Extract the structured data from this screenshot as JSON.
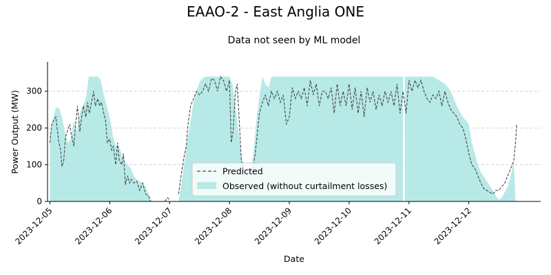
{
  "chart_data": {
    "type": "area",
    "title": "EAAO-2 - East Anglia ONE",
    "subtitle": "Data not seen by ML model",
    "xlabel": "Date",
    "ylabel": "Power Output (MW)",
    "x_ticks": [
      "2023-12-05",
      "2023-12-06",
      "2023-12-07",
      "2023-12-08",
      "2023-12-09",
      "2023-12-10",
      "2023-12-11",
      "2023-12-12"
    ],
    "y_ticks": [
      0,
      100,
      200,
      300
    ],
    "xlim": [
      -0.04,
      8.2
    ],
    "ylim": [
      0,
      380
    ],
    "grid": "horizontal dashed",
    "legend_position": "lower-center",
    "series": [
      {
        "name": "Observed (without curtailment losses)",
        "style": "filled area",
        "color": "#b7e9e7",
        "points": [
          [
            0.0,
            0
          ],
          [
            0.0,
            180
          ],
          [
            0.05,
            225
          ],
          [
            0.1,
            255
          ],
          [
            0.15,
            255
          ],
          [
            0.2,
            230
          ],
          [
            0.25,
            190
          ],
          [
            0.3,
            160
          ],
          [
            0.35,
            170
          ],
          [
            0.4,
            220
          ],
          [
            0.45,
            190
          ],
          [
            0.5,
            240
          ],
          [
            0.55,
            260
          ],
          [
            0.6,
            280
          ],
          [
            0.65,
            340
          ],
          [
            0.7,
            340
          ],
          [
            0.75,
            340
          ],
          [
            0.8,
            340
          ],
          [
            0.85,
            330
          ],
          [
            0.9,
            290
          ],
          [
            0.95,
            260
          ],
          [
            1.0,
            230
          ],
          [
            1.05,
            180
          ],
          [
            1.1,
            150
          ],
          [
            1.15,
            150
          ],
          [
            1.2,
            130
          ],
          [
            1.25,
            110
          ],
          [
            1.3,
            100
          ],
          [
            1.35,
            90
          ],
          [
            1.4,
            70
          ],
          [
            1.45,
            60
          ],
          [
            1.5,
            55
          ],
          [
            1.55,
            50
          ],
          [
            1.6,
            40
          ],
          [
            1.65,
            20
          ],
          [
            1.7,
            0
          ],
          [
            2.15,
            0
          ],
          [
            2.2,
            50
          ],
          [
            2.25,
            110
          ],
          [
            2.3,
            170
          ],
          [
            2.35,
            220
          ],
          [
            2.4,
            270
          ],
          [
            2.45,
            300
          ],
          [
            2.5,
            325
          ],
          [
            2.55,
            335
          ],
          [
            2.6,
            340
          ],
          [
            2.7,
            340
          ],
          [
            2.8,
            340
          ],
          [
            2.9,
            340
          ],
          [
            3.0,
            340
          ],
          [
            3.05,
            320
          ],
          [
            3.1,
            260
          ],
          [
            3.15,
            190
          ],
          [
            3.2,
            120
          ],
          [
            3.25,
            95
          ],
          [
            3.3,
            80
          ],
          [
            3.35,
            85
          ],
          [
            3.4,
            130
          ],
          [
            3.45,
            220
          ],
          [
            3.5,
            285
          ],
          [
            3.55,
            340
          ],
          [
            3.6,
            320
          ],
          [
            3.65,
            310
          ],
          [
            3.7,
            340
          ],
          [
            4.0,
            340
          ],
          [
            5.0,
            340
          ],
          [
            5.9,
            340
          ],
          [
            5.9,
            0
          ],
          [
            5.93,
            0
          ],
          [
            5.93,
            340
          ],
          [
            6.0,
            340
          ],
          [
            6.2,
            340
          ],
          [
            6.4,
            340
          ],
          [
            6.5,
            330
          ],
          [
            6.6,
            320
          ],
          [
            6.7,
            300
          ],
          [
            6.8,
            260
          ],
          [
            6.9,
            230
          ],
          [
            7.0,
            210
          ],
          [
            7.05,
            160
          ],
          [
            7.1,
            130
          ],
          [
            7.15,
            100
          ],
          [
            7.2,
            80
          ],
          [
            7.3,
            55
          ],
          [
            7.4,
            30
          ],
          [
            7.45,
            15
          ],
          [
            7.5,
            5
          ],
          [
            7.55,
            10
          ],
          [
            7.6,
            25
          ],
          [
            7.65,
            40
          ],
          [
            7.7,
            70
          ],
          [
            7.75,
            110
          ],
          [
            7.78,
            0
          ]
        ]
      },
      {
        "name": "Predicted",
        "style": "dashed line",
        "color": "#444444",
        "segments": [
          [
            [
              0.0,
              160
            ],
            [
              0.03,
              210
            ],
            [
              0.06,
              220
            ],
            [
              0.1,
              230
            ],
            [
              0.12,
              200
            ],
            [
              0.15,
              160
            ],
            [
              0.18,
              140
            ],
            [
              0.2,
              95
            ],
            [
              0.23,
              110
            ],
            [
              0.26,
              175
            ],
            [
              0.3,
              195
            ],
            [
              0.33,
              210
            ],
            [
              0.36,
              180
            ],
            [
              0.4,
              150
            ],
            [
              0.43,
              210
            ],
            [
              0.46,
              260
            ],
            [
              0.5,
              190
            ],
            [
              0.53,
              230
            ],
            [
              0.56,
              260
            ],
            [
              0.6,
              230
            ],
            [
              0.63,
              270
            ],
            [
              0.66,
              240
            ],
            [
              0.7,
              275
            ],
            [
              0.73,
              300
            ],
            [
              0.76,
              260
            ],
            [
              0.8,
              280
            ],
            [
              0.83,
              260
            ],
            [
              0.86,
              270
            ],
            [
              0.9,
              240
            ],
            [
              0.93,
              220
            ],
            [
              0.96,
              160
            ],
            [
              1.0,
              170
            ],
            [
              1.03,
              140
            ],
            [
              1.06,
              150
            ],
            [
              1.1,
              100
            ],
            [
              1.13,
              160
            ],
            [
              1.16,
              110
            ],
            [
              1.2,
              100
            ],
            [
              1.23,
              130
            ],
            [
              1.26,
              45
            ],
            [
              1.3,
              70
            ],
            [
              1.33,
              50
            ],
            [
              1.36,
              60
            ],
            [
              1.4,
              50
            ],
            [
              1.45,
              55
            ],
            [
              1.5,
              30
            ],
            [
              1.55,
              50
            ],
            [
              1.6,
              20
            ],
            [
              1.65,
              15
            ],
            [
              1.68,
              0
            ]
          ],
          [
            [
              1.92,
              0
            ],
            [
              1.96,
              10
            ],
            [
              2.0,
              5
            ]
          ],
          [
            [
              2.15,
              20
            ],
            [
              2.2,
              80
            ],
            [
              2.25,
              130
            ],
            [
              2.28,
              150
            ],
            [
              2.3,
              200
            ],
            [
              2.35,
              260
            ],
            [
              2.4,
              280
            ],
            [
              2.45,
              300
            ],
            [
              2.5,
              290
            ],
            [
              2.55,
              300
            ],
            [
              2.6,
              320
            ],
            [
              2.65,
              300
            ],
            [
              2.7,
              335
            ],
            [
              2.75,
              330
            ],
            [
              2.8,
              300
            ],
            [
              2.85,
              340
            ],
            [
              2.9,
              330
            ],
            [
              2.95,
              300
            ],
            [
              3.0,
              330
            ],
            [
              3.03,
              160
            ],
            [
              3.06,
              190
            ],
            [
              3.1,
              300
            ],
            [
              3.13,
              320
            ],
            [
              3.16,
              230
            ],
            [
              3.2,
              110
            ],
            [
              3.25,
              80
            ],
            [
              3.3,
              90
            ],
            [
              3.35,
              80
            ],
            [
              3.4,
              90
            ],
            [
              3.45,
              160
            ],
            [
              3.5,
              240
            ],
            [
              3.55,
              270
            ],
            [
              3.6,
              290
            ],
            [
              3.65,
              260
            ],
            [
              3.7,
              300
            ],
            [
              3.75,
              280
            ],
            [
              3.8,
              300
            ],
            [
              3.85,
              270
            ],
            [
              3.9,
              290
            ],
            [
              3.95,
              210
            ],
            [
              4.0,
              230
            ],
            [
              4.05,
              310
            ],
            [
              4.1,
              280
            ],
            [
              4.15,
              300
            ],
            [
              4.2,
              280
            ],
            [
              4.25,
              310
            ],
            [
              4.3,
              260
            ],
            [
              4.35,
              330
            ],
            [
              4.4,
              290
            ],
            [
              4.45,
              320
            ],
            [
              4.5,
              260
            ],
            [
              4.55,
              300
            ],
            [
              4.6,
              300
            ],
            [
              4.65,
              280
            ],
            [
              4.7,
              310
            ],
            [
              4.75,
              240
            ],
            [
              4.8,
              320
            ],
            [
              4.85,
              260
            ],
            [
              4.9,
              300
            ],
            [
              4.95,
              260
            ],
            [
              5.0,
              320
            ],
            [
              5.05,
              250
            ],
            [
              5.1,
              310
            ],
            [
              5.15,
              240
            ],
            [
              5.2,
              300
            ],
            [
              5.25,
              230
            ],
            [
              5.3,
              310
            ],
            [
              5.35,
              270
            ],
            [
              5.4,
              300
            ],
            [
              5.45,
              250
            ],
            [
              5.5,
              290
            ],
            [
              5.55,
              260
            ],
            [
              5.6,
              300
            ],
            [
              5.65,
              270
            ],
            [
              5.7,
              300
            ],
            [
              5.75,
              260
            ],
            [
              5.8,
              320
            ],
            [
              5.85,
              240
            ],
            [
              5.9,
              300
            ],
            [
              5.95,
              240
            ],
            [
              6.0,
              330
            ],
            [
              6.05,
              300
            ],
            [
              6.1,
              330
            ],
            [
              6.15,
              310
            ],
            [
              6.2,
              330
            ],
            [
              6.25,
              300
            ],
            [
              6.3,
              280
            ],
            [
              6.35,
              270
            ],
            [
              6.4,
              290
            ],
            [
              6.45,
              280
            ],
            [
              6.5,
              300
            ],
            [
              6.55,
              260
            ],
            [
              6.6,
              300
            ],
            [
              6.65,
              270
            ],
            [
              6.7,
              250
            ],
            [
              6.75,
              240
            ],
            [
              6.8,
              230
            ],
            [
              6.85,
              210
            ],
            [
              6.9,
              200
            ],
            [
              6.95,
              170
            ],
            [
              7.0,
              130
            ],
            [
              7.05,
              100
            ],
            [
              7.1,
              90
            ],
            [
              7.15,
              70
            ],
            [
              7.2,
              50
            ],
            [
              7.25,
              35
            ],
            [
              7.3,
              30
            ],
            [
              7.35,
              25
            ],
            [
              7.4,
              20
            ],
            [
              7.45,
              30
            ],
            [
              7.5,
              30
            ],
            [
              7.55,
              40
            ],
            [
              7.6,
              50
            ],
            [
              7.65,
              70
            ],
            [
              7.7,
              90
            ],
            [
              7.75,
              110
            ],
            [
              7.78,
              160
            ],
            [
              7.8,
              210
            ]
          ]
        ]
      }
    ]
  }
}
